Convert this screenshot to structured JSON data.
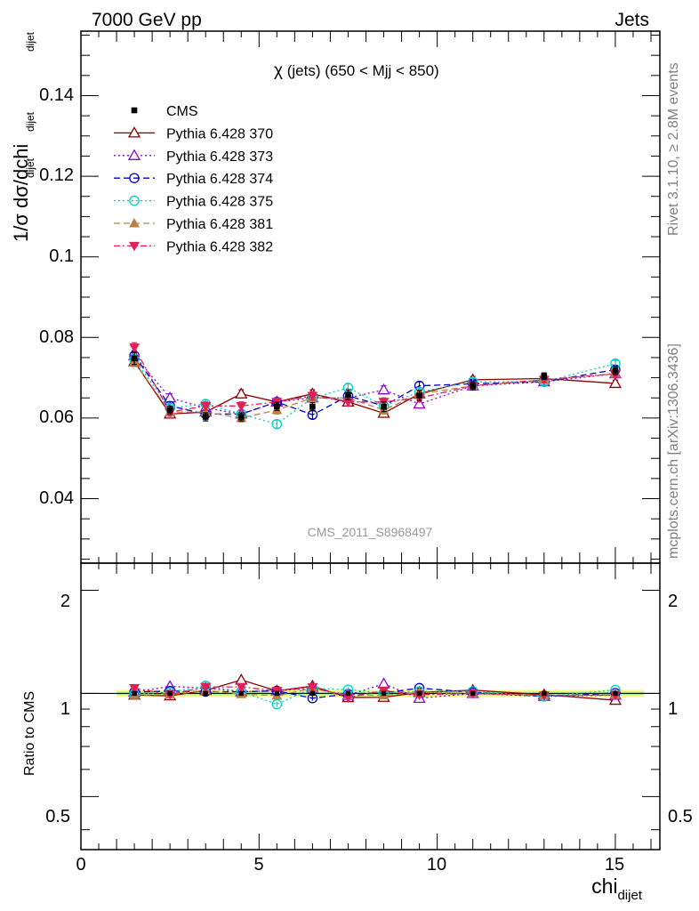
{
  "header": {
    "energy_label": "7000 GeV pp",
    "process_label": "Jets"
  },
  "side_labels": {
    "rivet": "Rivet 3.1.10, ≥ 2.8M events",
    "mcplots": "mcplots.cern.ch [arXiv:1306.3436]"
  },
  "main_panel": {
    "title_chi": "χ",
    "title_rest": " (jets) (650 < Mjj <  850)",
    "ylabel": "1/σ dσ/dchi",
    "ylabel_sub1": "dijet",
    "ylabel_sub2": "dijet",
    "ylabel_sub3": "dijet",
    "watermark": "CMS_2011_S8968497",
    "ylim": [
      0.024,
      0.156
    ],
    "yticks": [
      "0.04",
      "0.06",
      "0.08",
      "0.1",
      "0.12",
      "0.14"
    ]
  },
  "ratio_panel": {
    "ylabel": "Ratio to CMS",
    "yticks": [
      "0.5",
      "1",
      "2"
    ]
  },
  "xaxis": {
    "label": "chi",
    "label_sub": "dijet",
    "xlim": [
      0,
      16.25
    ],
    "ticks": [
      "0",
      "5",
      "10",
      "15"
    ]
  },
  "chart_data": {
    "type": "scatter",
    "x": [
      1.5,
      2.5,
      3.5,
      4.5,
      5.5,
      6.5,
      7.5,
      8.5,
      9.5,
      11,
      13,
      15
    ],
    "x_bins": [
      [
        1,
        2
      ],
      [
        2,
        3
      ],
      [
        3,
        4
      ],
      [
        4,
        5
      ],
      [
        5,
        6
      ],
      [
        6,
        7
      ],
      [
        7,
        8
      ],
      [
        8,
        9
      ],
      [
        9,
        10
      ],
      [
        10,
        12
      ],
      [
        12,
        14
      ],
      [
        14,
        16
      ]
    ],
    "series": [
      {
        "name": "CMS",
        "color": "#000000",
        "marker": "square-filled",
        "line": "none",
        "values": [
          0.0748,
          0.062,
          0.0603,
          0.0603,
          0.0629,
          0.0628,
          0.0658,
          0.0628,
          0.0656,
          0.068,
          0.0704,
          0.0718
        ],
        "errors": [
          0.0015,
          0.001,
          0.001,
          0.001,
          0.001,
          0.001,
          0.0012,
          0.0012,
          0.0012,
          0.001,
          0.0008,
          0.001
        ]
      },
      {
        "name": "Pythia 6.428 370",
        "color": "#8b0000",
        "marker": "triangle-up-open",
        "line": "solid",
        "values": [
          0.074,
          0.061,
          0.0615,
          0.066,
          0.064,
          0.066,
          0.064,
          0.0612,
          0.066,
          0.0695,
          0.0698,
          0.0686
        ],
        "errors": [
          0.0012,
          0.001,
          0.001,
          0.001,
          0.001,
          0.001,
          0.001,
          0.001,
          0.001,
          0.0008,
          0.0008,
          0.0008
        ]
      },
      {
        "name": "Pythia 6.428 373",
        "color": "#9400d3",
        "marker": "triangle-up-open",
        "line": "dotted",
        "values": [
          0.0755,
          0.065,
          0.0625,
          0.061,
          0.064,
          0.065,
          0.065,
          0.067,
          0.0635,
          0.068,
          0.069,
          0.071
        ],
        "errors": [
          0.0012,
          0.001,
          0.001,
          0.001,
          0.001,
          0.001,
          0.001,
          0.001,
          0.001,
          0.0008,
          0.0008,
          0.0008
        ]
      },
      {
        "name": "Pythia 6.428 374",
        "color": "#0000cd",
        "marker": "circle-open",
        "line": "dashed",
        "values": [
          0.0755,
          0.063,
          0.061,
          0.061,
          0.064,
          0.0608,
          0.0655,
          0.063,
          0.068,
          0.0685,
          0.069,
          0.072
        ],
        "errors": [
          0.0012,
          0.001,
          0.001,
          0.001,
          0.001,
          0.001,
          0.001,
          0.001,
          0.001,
          0.0008,
          0.0008,
          0.0008
        ]
      },
      {
        "name": "Pythia 6.428 375",
        "color": "#00d0c0",
        "marker": "circle-open",
        "line": "dotted",
        "values": [
          0.0745,
          0.0625,
          0.0635,
          0.061,
          0.0585,
          0.065,
          0.0675,
          0.063,
          0.0665,
          0.069,
          0.069,
          0.0735
        ],
        "errors": [
          0.0012,
          0.001,
          0.001,
          0.001,
          0.001,
          0.001,
          0.001,
          0.001,
          0.001,
          0.0008,
          0.0008,
          0.0008
        ]
      },
      {
        "name": "Pythia 6.428 381",
        "color": "#b8824a",
        "marker": "triangle-up-filled",
        "line": "dashed",
        "values": [
          0.074,
          0.0615,
          0.0615,
          0.06,
          0.062,
          0.065,
          0.065,
          0.062,
          0.066,
          0.068,
          0.0695,
          0.071
        ],
        "errors": [
          0.0012,
          0.001,
          0.001,
          0.001,
          0.001,
          0.001,
          0.001,
          0.001,
          0.001,
          0.0008,
          0.0008,
          0.0008
        ]
      },
      {
        "name": "Pythia 6.428 382",
        "color": "#e0205a",
        "marker": "triangle-down-filled",
        "line": "dashdot",
        "values": [
          0.0775,
          0.0615,
          0.063,
          0.063,
          0.064,
          0.0655,
          0.064,
          0.064,
          0.065,
          0.068,
          0.0695,
          0.071
        ],
        "errors": [
          0.0012,
          0.001,
          0.001,
          0.001,
          0.001,
          0.001,
          0.001,
          0.001,
          0.001,
          0.0008,
          0.0008,
          0.0008
        ]
      }
    ],
    "grid": false,
    "legend_placement": "top-left"
  }
}
